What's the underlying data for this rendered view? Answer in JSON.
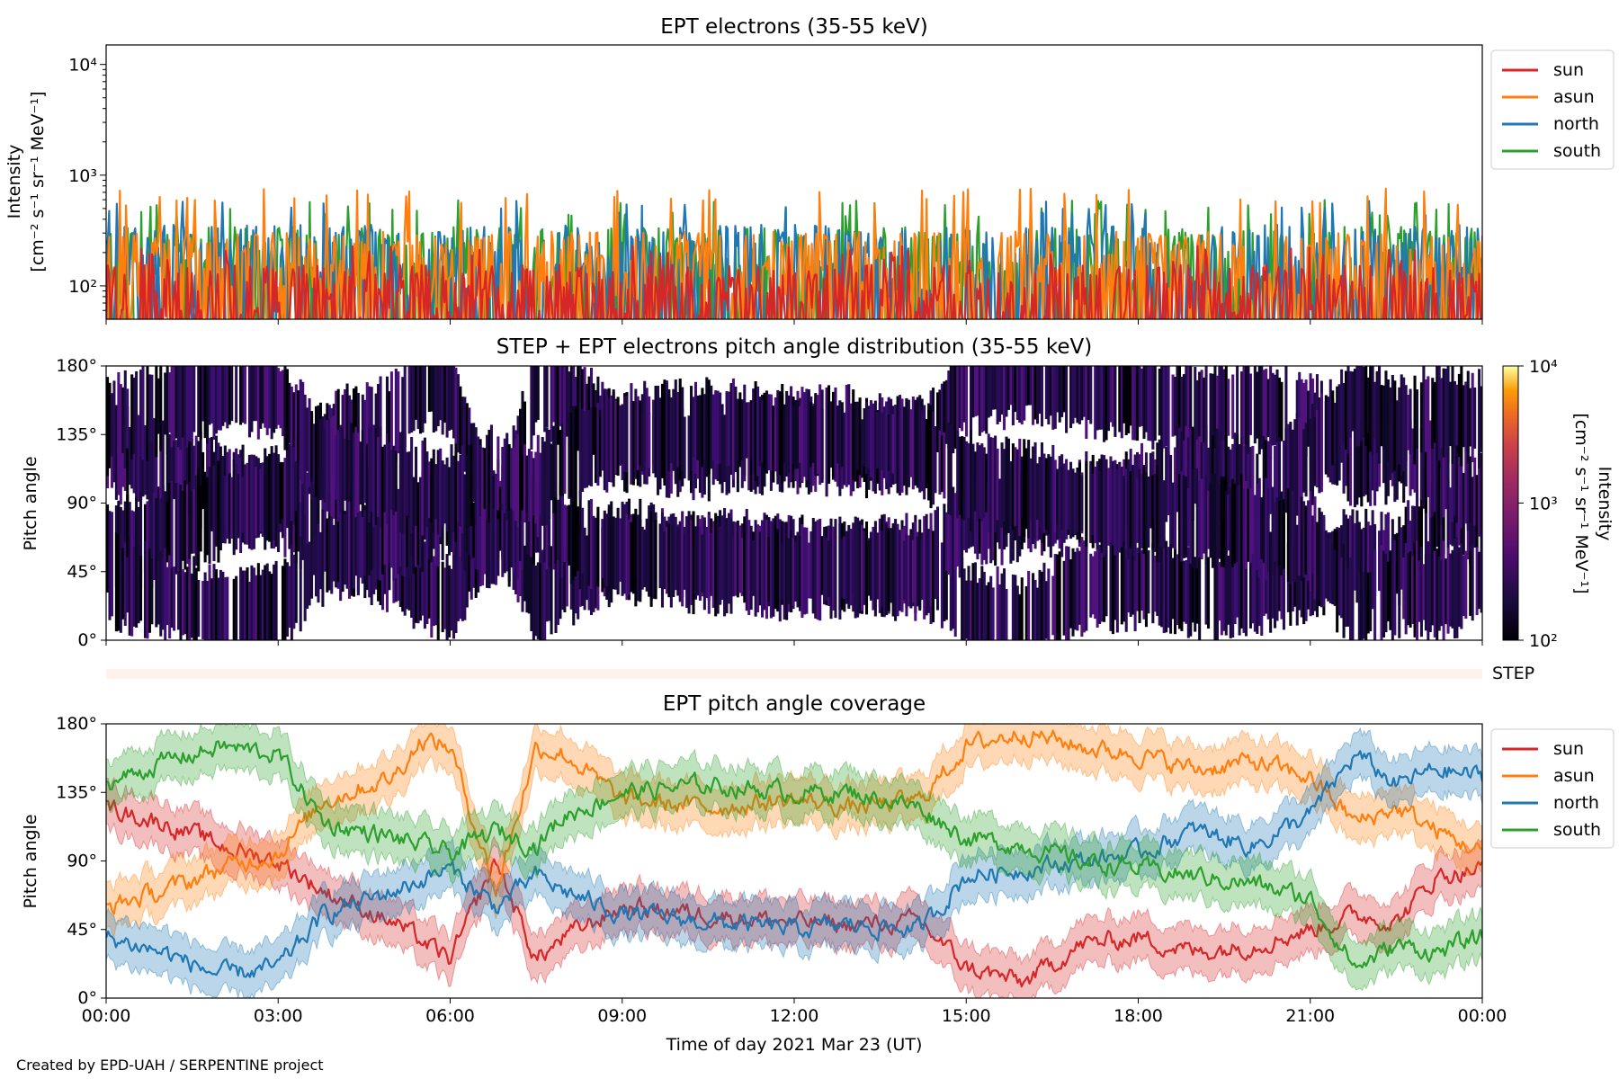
{
  "footer": "Created by EPD-UAH / SERPENTINE project",
  "colors": {
    "sun": "#d62728",
    "asun": "#ff7f0e",
    "north": "#1f77b4",
    "south": "#2ca02c"
  },
  "chart_data": [
    {
      "type": "line",
      "title": "EPT electrons (35-55 keV)",
      "ylabel": "Intensity",
      "ylabel_units": "[cm⁻² s⁻¹ sr⁻¹ MeV⁻¹]",
      "yscale": "log",
      "ylim": [
        50,
        15000
      ],
      "y_tick_labels": [
        "10²",
        "10³",
        "10⁴"
      ],
      "legend": {
        "placement": "outside-right",
        "entries": [
          "sun",
          "asun",
          "north",
          "south"
        ]
      },
      "series": [
        {
          "name": "sun",
          "baseline": 100,
          "peak": 230
        },
        {
          "name": "asun",
          "baseline": 200,
          "peak": 760
        },
        {
          "name": "north",
          "baseline": 230,
          "peak": 600
        },
        {
          "name": "south",
          "baseline": 220,
          "peak": 600
        }
      ]
    },
    {
      "type": "heatmap",
      "title": "STEP + EPT electrons pitch angle distribution (35-55 keV)",
      "ylabel": "Pitch angle",
      "ylim": [
        0,
        180
      ],
      "y_tick_labels": [
        "0°",
        "45°",
        "90°",
        "135°",
        "180°"
      ],
      "colorbar": {
        "label": "Intensity",
        "units": "[cm⁻² s⁻¹ sr⁻¹ MeV⁻¹]",
        "range": [
          100,
          10000
        ],
        "tick_labels": [
          "10²",
          "10³",
          "10⁴"
        ]
      },
      "step_label": "STEP"
    },
    {
      "type": "line",
      "title": "EPT pitch angle coverage",
      "ylabel": "Pitch angle",
      "ylim": [
        0,
        180
      ],
      "y_tick_labels": [
        "0°",
        "45°",
        "90°",
        "135°",
        "180°"
      ],
      "xlabel": "Time of day 2021 Mar 23 (UT)",
      "x_tick_labels": [
        "00:00",
        "03:00",
        "06:00",
        "09:00",
        "12:00",
        "15:00",
        "18:00",
        "21:00",
        "00:00"
      ],
      "legend": {
        "placement": "outside-right",
        "entries": [
          "sun",
          "asun",
          "north",
          "south"
        ]
      },
      "series": [
        {
          "name": "sun",
          "x_hours": [
            0,
            1,
            2,
            3,
            3.8,
            5,
            6,
            6.8,
            7.5,
            8,
            9,
            10.5,
            12,
            13,
            14.2,
            15,
            16,
            17,
            18,
            19,
            20,
            21,
            21.8,
            22.5,
            23.2,
            24
          ],
          "y": [
            125,
            115,
            100,
            90,
            70,
            50,
            25,
            90,
            25,
            40,
            60,
            55,
            50,
            48,
            50,
            20,
            10,
            35,
            40,
            30,
            35,
            45,
            55,
            50,
            80,
            85
          ]
        },
        {
          "name": "asun",
          "x_hours": [
            0,
            1,
            2,
            3,
            3.8,
            5,
            5.5,
            6,
            6.8,
            7.5,
            8,
            9,
            10.5,
            12,
            13,
            14.2,
            15,
            16,
            17,
            18,
            19,
            20,
            21,
            21.8,
            22.5,
            23.2,
            24
          ],
          "y": [
            60,
            70,
            85,
            95,
            130,
            145,
            170,
            165,
            70,
            165,
            160,
            130,
            125,
            130,
            125,
            130,
            165,
            175,
            165,
            160,
            150,
            155,
            145,
            115,
            125,
            110,
            95
          ]
        },
        {
          "name": "north",
          "x_hours": [
            0,
            1,
            2,
            3,
            3.8,
            5,
            6,
            6.8,
            7.5,
            8,
            9,
            10.5,
            12,
            13,
            14.2,
            15,
            16,
            17,
            18,
            19,
            20,
            21,
            21.8,
            22.5,
            23.2,
            24
          ],
          "y": [
            40,
            30,
            15,
            20,
            55,
            70,
            85,
            60,
            80,
            70,
            55,
            50,
            45,
            48,
            45,
            80,
            85,
            90,
            95,
            110,
            100,
            120,
            160,
            140,
            150,
            145
          ]
        },
        {
          "name": "south",
          "x_hours": [
            0,
            1,
            2,
            3,
            3.8,
            5,
            6,
            6.8,
            7.5,
            8,
            9,
            10.5,
            12,
            13,
            14.2,
            15,
            16,
            17,
            18,
            19,
            20,
            21,
            21.8,
            22.5,
            23.2,
            24
          ],
          "y": [
            140,
            155,
            165,
            160,
            115,
            105,
            95,
            110,
            100,
            120,
            135,
            140,
            135,
            135,
            125,
            105,
            100,
            90,
            85,
            80,
            75,
            65,
            20,
            35,
            30,
            40
          ]
        }
      ]
    }
  ]
}
